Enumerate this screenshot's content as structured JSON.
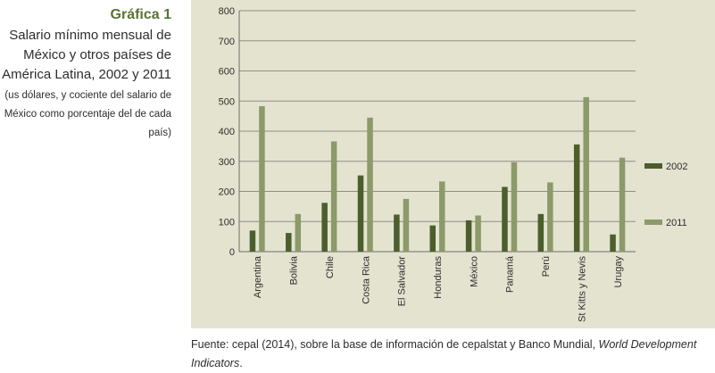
{
  "caption": {
    "label": "Gráfica 1",
    "title": "Salario mínimo mensual de México y otros países de América Latina, 2002 y 2011",
    "subtitle": "(us dólares, y cociente del salario de México como porcentaje del de cada país)"
  },
  "source": {
    "prefix": "Fuente: cepal (2014), sobre la base de información de cepalstat y Banco Mundial, ",
    "italic": "World Development Indicators",
    "suffix": "."
  },
  "colors": {
    "s2002": "#4b5e2c",
    "s2011": "#8c9a6a",
    "panel": "#e4e3d0",
    "grid": "#8f8f86"
  },
  "chart_data": {
    "type": "bar",
    "title": "",
    "xlabel": "",
    "ylabel": "",
    "ylim": [
      0,
      800
    ],
    "yticks": [
      0,
      100,
      200,
      300,
      400,
      500,
      600,
      700,
      800
    ],
    "grid": true,
    "legend_position": "right",
    "categories": [
      "Argentina",
      "Bolivia",
      "Chile",
      "Costa Rica",
      "El Salvador",
      "Honduras",
      "México",
      "Panamá",
      "Perú",
      "St Kitts y Nevis",
      "Urugay"
    ],
    "series": [
      {
        "name": "2002",
        "values": [
          70,
          62,
          162,
          253,
          123,
          87,
          104,
          215,
          125,
          356,
          57
        ]
      },
      {
        "name": "2011",
        "values": [
          483,
          125,
          366,
          445,
          175,
          233,
          120,
          297,
          230,
          513,
          312
        ]
      }
    ]
  }
}
